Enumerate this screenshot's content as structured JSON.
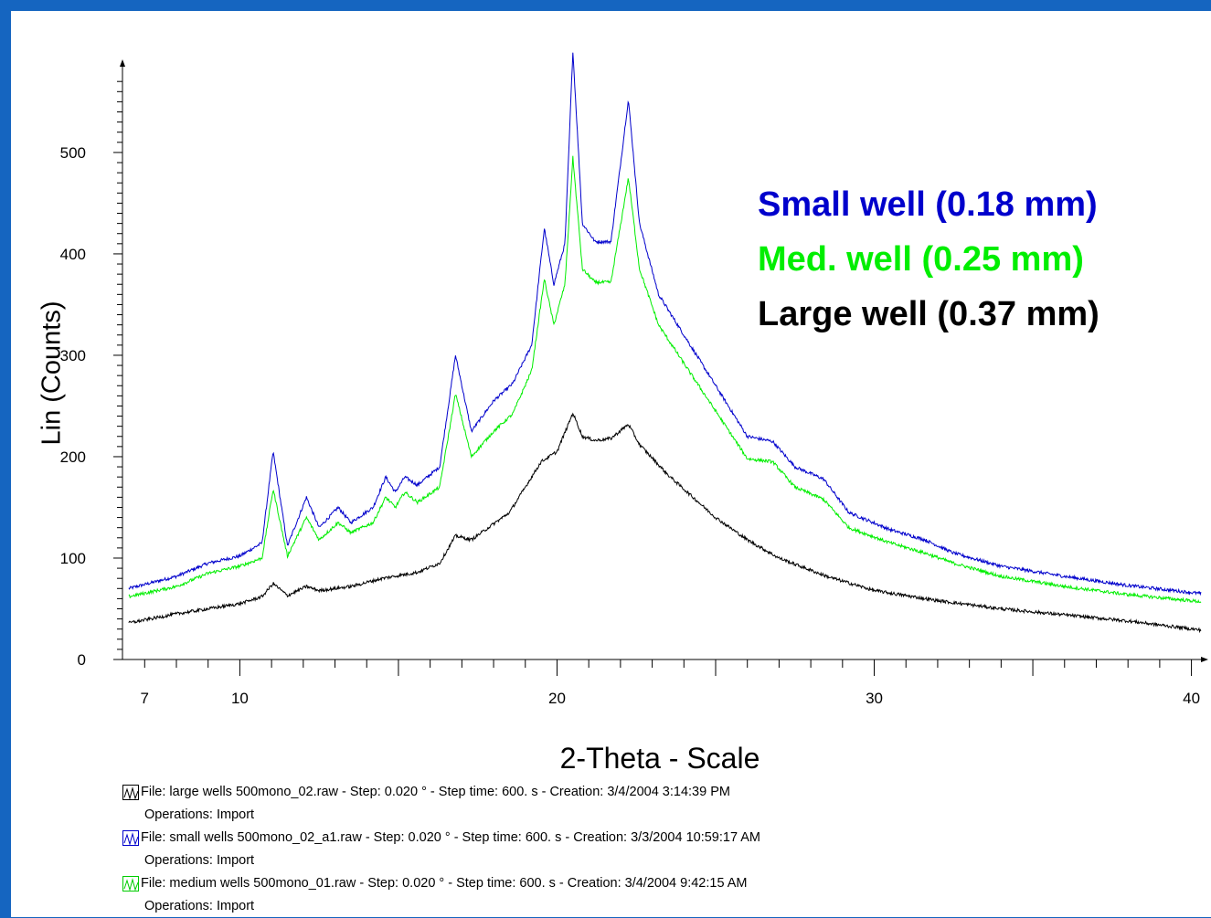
{
  "chart_data": {
    "type": "line",
    "xlabel": "2-Theta - Scale",
    "ylabel": "Lin (Counts)",
    "xlim": [
      6.3,
      40.3
    ],
    "ylim": [
      0,
      590
    ],
    "x_ticks": [
      7,
      10,
      20,
      30,
      40
    ],
    "y_ticks": [
      0,
      100,
      200,
      300,
      400,
      500
    ],
    "series": [
      {
        "name": "Small well (0.18 mm)",
        "color": "#0000cc",
        "points": [
          [
            6.5,
            70
          ],
          [
            8,
            82
          ],
          [
            9,
            95
          ],
          [
            10,
            102
          ],
          [
            10.7,
            115
          ],
          [
            11.05,
            205
          ],
          [
            11.5,
            112
          ],
          [
            12.1,
            160
          ],
          [
            12.5,
            130
          ],
          [
            13.1,
            150
          ],
          [
            13.5,
            135
          ],
          [
            14.2,
            150
          ],
          [
            14.6,
            180
          ],
          [
            14.9,
            165
          ],
          [
            15.2,
            180
          ],
          [
            15.6,
            172
          ],
          [
            16.3,
            190
          ],
          [
            16.8,
            300
          ],
          [
            17.3,
            225
          ],
          [
            18.0,
            255
          ],
          [
            18.6,
            272
          ],
          [
            19.2,
            310
          ],
          [
            19.6,
            425
          ],
          [
            19.9,
            370
          ],
          [
            20.25,
            410
          ],
          [
            20.5,
            600
          ],
          [
            20.8,
            430
          ],
          [
            21.2,
            412
          ],
          [
            21.7,
            412
          ],
          [
            22.25,
            552
          ],
          [
            22.6,
            430
          ],
          [
            23.2,
            360
          ],
          [
            24.0,
            320
          ],
          [
            25.0,
            270
          ],
          [
            26.0,
            220
          ],
          [
            26.8,
            215
          ],
          [
            27.5,
            190
          ],
          [
            28.4,
            178
          ],
          [
            29.2,
            145
          ],
          [
            30.5,
            128
          ],
          [
            31.6,
            118
          ],
          [
            32.5,
            105
          ],
          [
            34.0,
            92
          ],
          [
            36.0,
            82
          ],
          [
            38.0,
            73
          ],
          [
            40.3,
            65
          ]
        ]
      },
      {
        "name": "Med. well (0.25 mm)",
        "color": "#00ee00",
        "points": [
          [
            6.5,
            62
          ],
          [
            8,
            72
          ],
          [
            9,
            85
          ],
          [
            10,
            92
          ],
          [
            10.7,
            100
          ],
          [
            11.05,
            168
          ],
          [
            11.5,
            102
          ],
          [
            12.1,
            140
          ],
          [
            12.5,
            118
          ],
          [
            13.1,
            135
          ],
          [
            13.5,
            125
          ],
          [
            14.2,
            135
          ],
          [
            14.6,
            160
          ],
          [
            14.9,
            150
          ],
          [
            15.2,
            165
          ],
          [
            15.6,
            155
          ],
          [
            16.3,
            170
          ],
          [
            16.8,
            262
          ],
          [
            17.3,
            200
          ],
          [
            18.0,
            225
          ],
          [
            18.6,
            242
          ],
          [
            19.2,
            285
          ],
          [
            19.6,
            375
          ],
          [
            19.9,
            330
          ],
          [
            20.25,
            370
          ],
          [
            20.5,
            495
          ],
          [
            20.8,
            385
          ],
          [
            21.2,
            372
          ],
          [
            21.7,
            372
          ],
          [
            22.25,
            475
          ],
          [
            22.6,
            385
          ],
          [
            23.2,
            330
          ],
          [
            24.0,
            292
          ],
          [
            25.0,
            245
          ],
          [
            26.0,
            198
          ],
          [
            26.8,
            195
          ],
          [
            27.5,
            170
          ],
          [
            28.4,
            158
          ],
          [
            29.2,
            130
          ],
          [
            30.5,
            115
          ],
          [
            31.6,
            105
          ],
          [
            32.5,
            95
          ],
          [
            34.0,
            82
          ],
          [
            36.0,
            72
          ],
          [
            38.0,
            64
          ],
          [
            40.3,
            57
          ]
        ]
      },
      {
        "name": "Large well (0.37 mm)",
        "color": "#000000",
        "points": [
          [
            6.5,
            36
          ],
          [
            8,
            45
          ],
          [
            9,
            50
          ],
          [
            10,
            55
          ],
          [
            10.7,
            62
          ],
          [
            11.05,
            75
          ],
          [
            11.5,
            63
          ],
          [
            12.1,
            72
          ],
          [
            12.5,
            68
          ],
          [
            13.5,
            72
          ],
          [
            14.5,
            80
          ],
          [
            15.6,
            86
          ],
          [
            16.3,
            95
          ],
          [
            16.8,
            122
          ],
          [
            17.3,
            118
          ],
          [
            18.5,
            145
          ],
          [
            19.5,
            195
          ],
          [
            20.0,
            205
          ],
          [
            20.5,
            243
          ],
          [
            20.8,
            220
          ],
          [
            21.2,
            216
          ],
          [
            21.7,
            218
          ],
          [
            22.25,
            232
          ],
          [
            22.6,
            212
          ],
          [
            23.5,
            182
          ],
          [
            25.0,
            140
          ],
          [
            26.0,
            118
          ],
          [
            27.0,
            100
          ],
          [
            28.5,
            82
          ],
          [
            30.0,
            68
          ],
          [
            32.0,
            58
          ],
          [
            34.0,
            50
          ],
          [
            36.0,
            44
          ],
          [
            38.0,
            38
          ],
          [
            40.3,
            29
          ]
        ]
      }
    ]
  },
  "legend_labels": [
    "Small well (0.18 mm)",
    "Med. well (0.25 mm)",
    "Large well (0.37 mm)"
  ],
  "files": [
    {
      "color": "#000000",
      "line": "File: large  wells 500mono_02.raw - Step: 0.020 ° - Step time: 600. s - Creation: 3/4/2004 3:14:39 PM",
      "ops": "Operations: Import"
    },
    {
      "color": "#0000cc",
      "line": "File: small wells 500mono_02_a1.raw - Step: 0.020 ° - Step time: 600. s - Creation: 3/3/2004 10:59:17 AM",
      "ops": "Operations: Import"
    },
    {
      "color": "#00cc00",
      "line": "File: medium  wells 500mono_01.raw - Step: 0.020 ° - Step time: 600. s - Creation: 3/4/2004 9:42:15 AM",
      "ops": "Operations: Import"
    }
  ]
}
